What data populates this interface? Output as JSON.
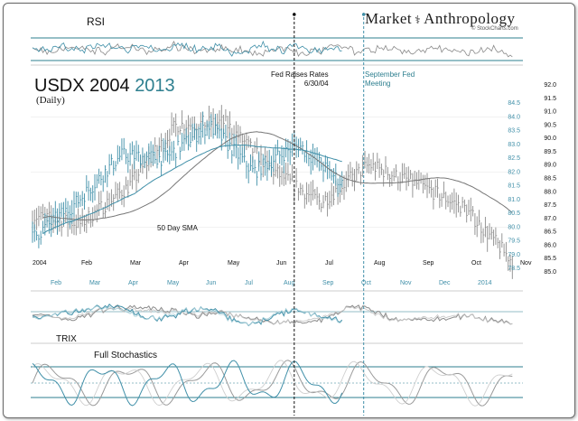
{
  "brand": {
    "left": "Market",
    "right": "Anthropology",
    "credit": "© StockCharts.com"
  },
  "titles": {
    "rsi": "RSI",
    "main_black": "USDX 2004",
    "main_teal": "2013",
    "subtitle": "(Daily)",
    "sma": "50 Day SMA",
    "trix": "TRIX",
    "stoch": "Full Stochastics"
  },
  "annotations": {
    "fed_line1": "Fed Raises Rates",
    "fed_line2": "6/30/04",
    "sep_line1": "September Fed",
    "sep_line2": "Meeting"
  },
  "colors": {
    "y2004": "#8a8a8a",
    "y2013": "#3f8fa8",
    "accent": "#2e7f8f",
    "grid": "#2e7f8f"
  },
  "chart_data": {
    "type": "line",
    "title": "USDX 2004 2013 (Daily)",
    "x_labels_2004": [
      "2004",
      "Feb",
      "Mar",
      "Apr",
      "May",
      "Jun",
      "Jul",
      "Aug",
      "Sep",
      "Oct",
      "Nov"
    ],
    "x_labels_2013": [
      "Feb",
      "Mar",
      "Apr",
      "May",
      "Jun",
      "Jul",
      "Aug",
      "Sep",
      "Oct",
      "Nov",
      "Dec",
      "2014"
    ],
    "y_2013_ticks": [
      "84.5",
      "84.0",
      "83.5",
      "83.0",
      "82.5",
      "82.0",
      "81.5",
      "81.0",
      "80.5",
      "80.0",
      "79.5",
      "79.0",
      "78.5"
    ],
    "y_2004_ticks": [
      "92.0",
      "91.5",
      "91.0",
      "90.5",
      "90.0",
      "89.5",
      "89.0",
      "88.5",
      "88.0",
      "87.5",
      "87.0",
      "86.5",
      "86.0",
      "85.5",
      "85.0"
    ],
    "y_2013_range": [
      78.5,
      84.5
    ],
    "y_2004_range": [
      85.0,
      92.0
    ],
    "series": [
      {
        "name": "USDX 2013",
        "months": [
          "Jan",
          "Feb",
          "Mar",
          "Apr",
          "May",
          "Jun",
          "Jul",
          "Aug"
        ],
        "values": [
          79.6,
          80.9,
          82.6,
          82.5,
          83.7,
          82.0,
          83.0,
          81.6
        ]
      },
      {
        "name": "USDX 2004",
        "months": [
          "Jan",
          "Feb",
          "Mar",
          "Apr",
          "May",
          "Jun",
          "Jul",
          "Aug",
          "Sep",
          "Oct",
          "Nov"
        ],
        "values": [
          87.1,
          86.8,
          88.2,
          90.5,
          90.6,
          88.8,
          87.6,
          89.0,
          88.3,
          87.4,
          85.4
        ]
      }
    ],
    "events": [
      {
        "label": "Fed Raises Rates 6/30/04",
        "series": "USDX 2004"
      },
      {
        "label": "September Fed Meeting",
        "series": "USDX 2013"
      }
    ]
  }
}
